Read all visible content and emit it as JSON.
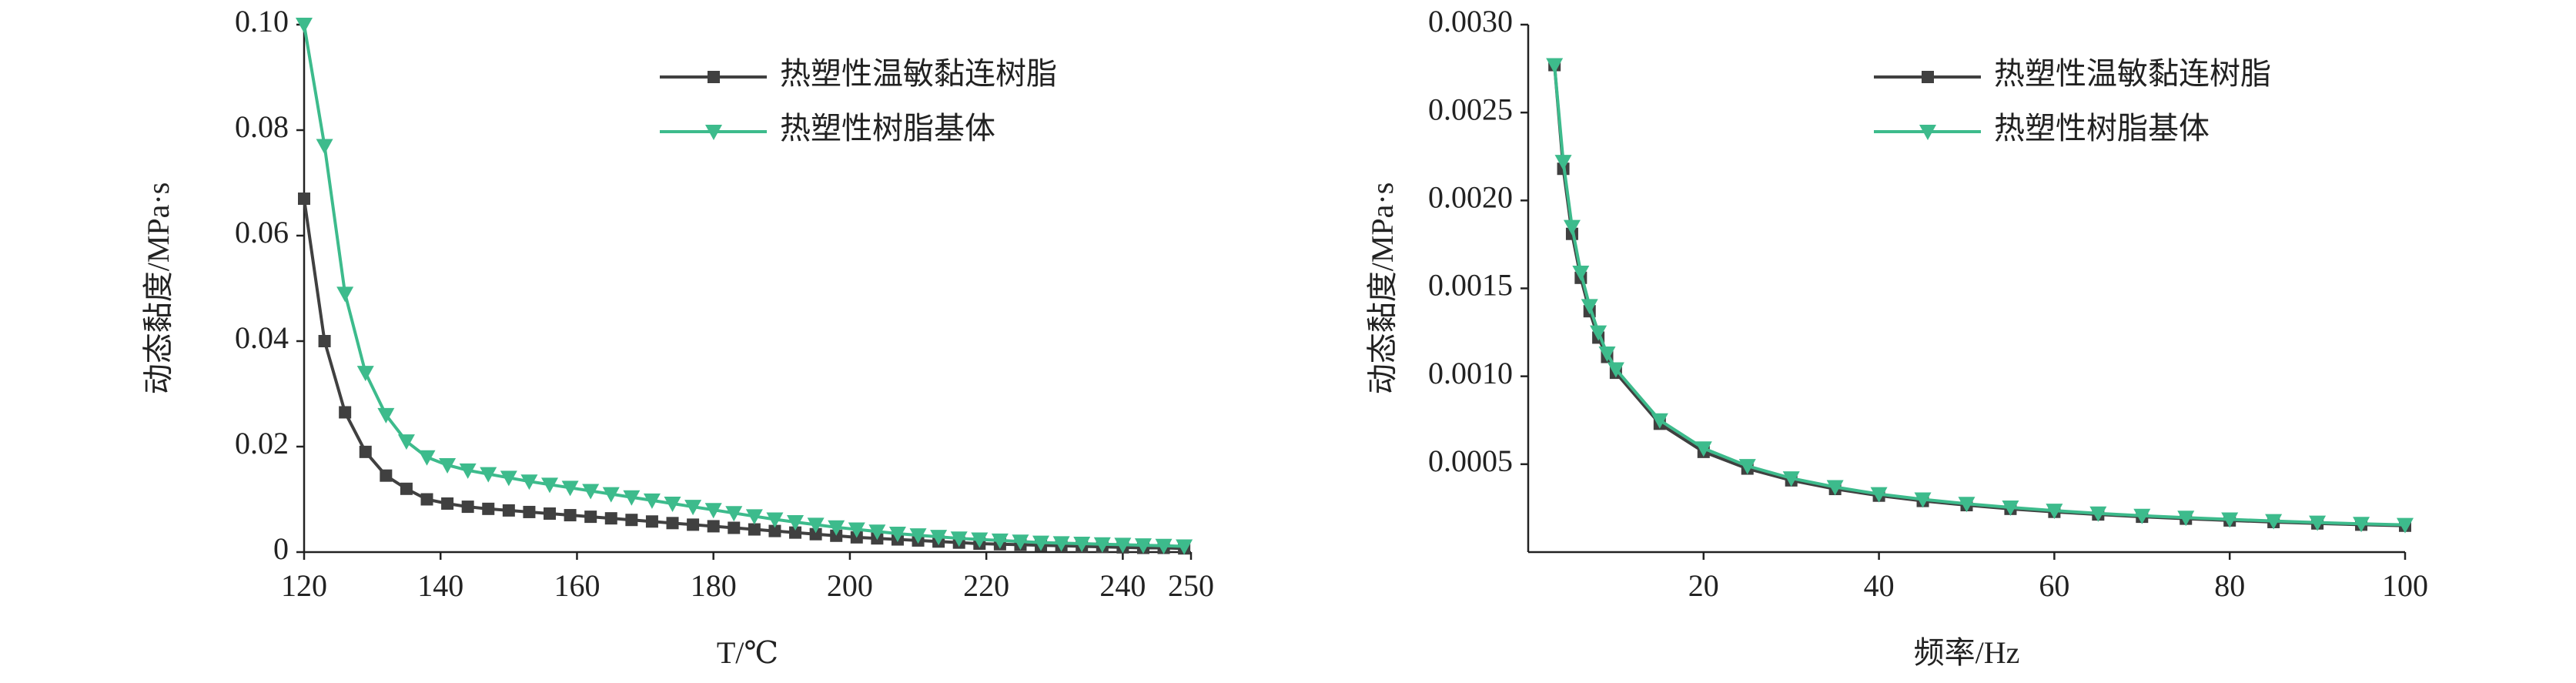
{
  "chart_data": [
    {
      "type": "line",
      "xlabel": "T/℃",
      "ylabel": "动态黏度/MPa·s",
      "xlim": [
        120,
        250
      ],
      "xticks": [
        120,
        140,
        160,
        180,
        200,
        220,
        240,
        250
      ],
      "ylim": [
        0,
        0.1
      ],
      "yticks": [
        0,
        0.02,
        0.04,
        0.06,
        0.08,
        {
          "value": 0.1,
          "label": "0.10"
        }
      ],
      "legend": "upper right",
      "x": [
        120,
        123,
        126,
        129,
        132,
        135,
        138,
        141,
        144,
        147,
        150,
        153,
        156,
        159,
        162,
        165,
        168,
        171,
        174,
        177,
        180,
        183,
        186,
        189,
        192,
        195,
        198,
        201,
        204,
        207,
        210,
        213,
        216,
        219,
        222,
        225,
        228,
        231,
        234,
        237,
        240,
        243,
        246,
        249
      ],
      "series": [
        {
          "name": "热塑性温敏黏连树脂",
          "color": "#404040",
          "marker": "square",
          "values": [
            0.067,
            0.04,
            0.0265,
            0.019,
            0.0145,
            0.012,
            0.01,
            0.0092,
            0.0086,
            0.0082,
            0.0079,
            0.0076,
            0.0073,
            0.007,
            0.0067,
            0.0064,
            0.0061,
            0.0058,
            0.0055,
            0.0052,
            0.0049,
            0.0046,
            0.0043,
            0.004,
            0.0037,
            0.0034,
            0.0031,
            0.0028,
            0.0026,
            0.0024,
            0.0022,
            0.002,
            0.0018,
            0.0016,
            0.0015,
            0.0014,
            0.0013,
            0.0012,
            0.0011,
            0.001,
            0.0009,
            0.0008,
            0.0008,
            0.0007
          ]
        },
        {
          "name": "热塑性树脂基体",
          "color": "#3dbb8c",
          "marker": "triangle",
          "values": [
            0.1,
            0.077,
            0.049,
            0.034,
            0.026,
            0.021,
            0.018,
            0.0165,
            0.0155,
            0.0148,
            0.0141,
            0.0134,
            0.0128,
            0.0122,
            0.0116,
            0.011,
            0.0104,
            0.0098,
            0.0092,
            0.0086,
            0.008,
            0.0074,
            0.0068,
            0.0062,
            0.0057,
            0.0052,
            0.0047,
            0.0043,
            0.0039,
            0.0035,
            0.0032,
            0.0029,
            0.0026,
            0.0024,
            0.0022,
            0.002,
            0.0018,
            0.0017,
            0.0016,
            0.0015,
            0.0014,
            0.0013,
            0.0012,
            0.0011
          ]
        }
      ]
    },
    {
      "type": "line",
      "xlabel": "频率/Hz",
      "ylabel": "动态黏度/MPa·s",
      "xlim": [
        0,
        100
      ],
      "xticks": [
        20,
        40,
        60,
        80,
        100
      ],
      "ylim": [
        0,
        0.003
      ],
      "yticks": [
        0.0005,
        {
          "value": 0.001,
          "label": "0.0010"
        },
        0.0015,
        {
          "value": 0.002,
          "label": "0.0020"
        },
        0.0025,
        {
          "value": 0.003,
          "label": "0.0030"
        }
      ],
      "legend": "upper right",
      "x": [
        3,
        4,
        5,
        6,
        7,
        8,
        9,
        10,
        15,
        20,
        25,
        30,
        35,
        40,
        45,
        50,
        55,
        60,
        65,
        70,
        75,
        80,
        85,
        90,
        95,
        100
      ],
      "series": [
        {
          "name": "热塑性温敏黏连树脂",
          "color": "#404040",
          "marker": "square",
          "values": [
            0.00277,
            0.00218,
            0.00181,
            0.00156,
            0.00137,
            0.00122,
            0.00111,
            0.00102,
            0.00073,
            0.00057,
            0.000475,
            0.000408,
            0.000359,
            0.000321,
            0.000291,
            0.000267,
            0.000246,
            0.000229,
            0.000214,
            0.000201,
            0.00019,
            0.00018,
            0.000171,
            0.000163,
            0.000156,
            0.00015
          ]
        },
        {
          "name": "热塑性树脂基体",
          "color": "#3dbb8c",
          "marker": "triangle",
          "values": [
            0.00277,
            0.00222,
            0.00185,
            0.00159,
            0.0014,
            0.00125,
            0.00113,
            0.00104,
            0.00075,
            0.00059,
            0.00049,
            0.00042,
            0.00037,
            0.00033,
            0.0003,
            0.000275,
            0.000254,
            0.000236,
            0.00022,
            0.000207,
            0.000196,
            0.000186,
            0.000177,
            0.000168,
            0.000161,
            0.000155
          ]
        }
      ]
    }
  ]
}
